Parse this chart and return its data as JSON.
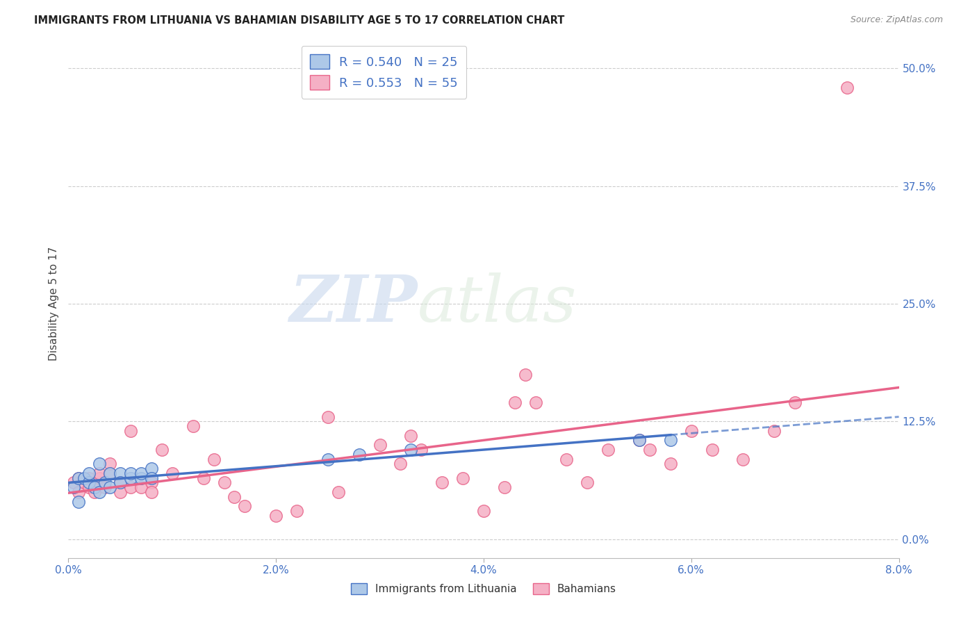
{
  "title": "IMMIGRANTS FROM LITHUANIA VS BAHAMIAN DISABILITY AGE 5 TO 17 CORRELATION CHART",
  "source": "Source: ZipAtlas.com",
  "xlabel_ticks": [
    "0.0%",
    "2.0%",
    "4.0%",
    "6.0%",
    "8.0%"
  ],
  "xlabel_tick_vals": [
    0.0,
    0.02,
    0.04,
    0.06,
    0.08
  ],
  "ylabel_ticks": [
    "0.0%",
    "12.5%",
    "25.0%",
    "37.5%",
    "50.0%"
  ],
  "ylabel_tick_vals": [
    0.0,
    0.125,
    0.25,
    0.375,
    0.5
  ],
  "ylabel": "Disability Age 5 to 17",
  "xlim": [
    0.0,
    0.08
  ],
  "ylim": [
    -0.02,
    0.52
  ],
  "blue_scatter_x": [
    0.0005,
    0.001,
    0.001,
    0.0015,
    0.002,
    0.002,
    0.0025,
    0.003,
    0.003,
    0.0035,
    0.004,
    0.004,
    0.005,
    0.005,
    0.006,
    0.006,
    0.007,
    0.007,
    0.008,
    0.008,
    0.025,
    0.028,
    0.033,
    0.055,
    0.058
  ],
  "blue_scatter_y": [
    0.055,
    0.065,
    0.04,
    0.065,
    0.06,
    0.07,
    0.055,
    0.05,
    0.08,
    0.06,
    0.055,
    0.07,
    0.07,
    0.06,
    0.065,
    0.07,
    0.065,
    0.07,
    0.075,
    0.065,
    0.085,
    0.09,
    0.095,
    0.105,
    0.105
  ],
  "pink_scatter_x": [
    0.0005,
    0.001,
    0.001,
    0.0015,
    0.002,
    0.002,
    0.0025,
    0.003,
    0.003,
    0.003,
    0.0035,
    0.004,
    0.004,
    0.005,
    0.005,
    0.006,
    0.006,
    0.007,
    0.008,
    0.008,
    0.009,
    0.01,
    0.012,
    0.013,
    0.014,
    0.015,
    0.016,
    0.017,
    0.02,
    0.022,
    0.025,
    0.026,
    0.03,
    0.032,
    0.033,
    0.034,
    0.036,
    0.038,
    0.04,
    0.042,
    0.043,
    0.044,
    0.045,
    0.048,
    0.05,
    0.052,
    0.055,
    0.056,
    0.058,
    0.06,
    0.062,
    0.065,
    0.068,
    0.07,
    0.075
  ],
  "pink_scatter_y": [
    0.06,
    0.05,
    0.065,
    0.06,
    0.065,
    0.055,
    0.05,
    0.06,
    0.065,
    0.07,
    0.055,
    0.07,
    0.08,
    0.06,
    0.05,
    0.055,
    0.115,
    0.055,
    0.06,
    0.05,
    0.095,
    0.07,
    0.12,
    0.065,
    0.085,
    0.06,
    0.045,
    0.035,
    0.025,
    0.03,
    0.13,
    0.05,
    0.1,
    0.08,
    0.11,
    0.095,
    0.06,
    0.065,
    0.03,
    0.055,
    0.145,
    0.175,
    0.145,
    0.085,
    0.06,
    0.095,
    0.105,
    0.095,
    0.08,
    0.115,
    0.095,
    0.085,
    0.115,
    0.145,
    0.48
  ],
  "blue_color": "#adc8e8",
  "blue_line_color": "#4472c4",
  "pink_color": "#f5b0c5",
  "pink_line_color": "#e8648a",
  "legend_blue_text": "R = 0.540   N = 25",
  "legend_pink_text": "R = 0.553   N = 55",
  "legend_label_blue": "Immigrants from Lithuania",
  "legend_label_pink": "Bahamians",
  "watermark_zip": "ZIP",
  "watermark_atlas": "atlas",
  "R_blue": 0.54,
  "N_blue": 25,
  "R_pink": 0.553,
  "N_pink": 55
}
